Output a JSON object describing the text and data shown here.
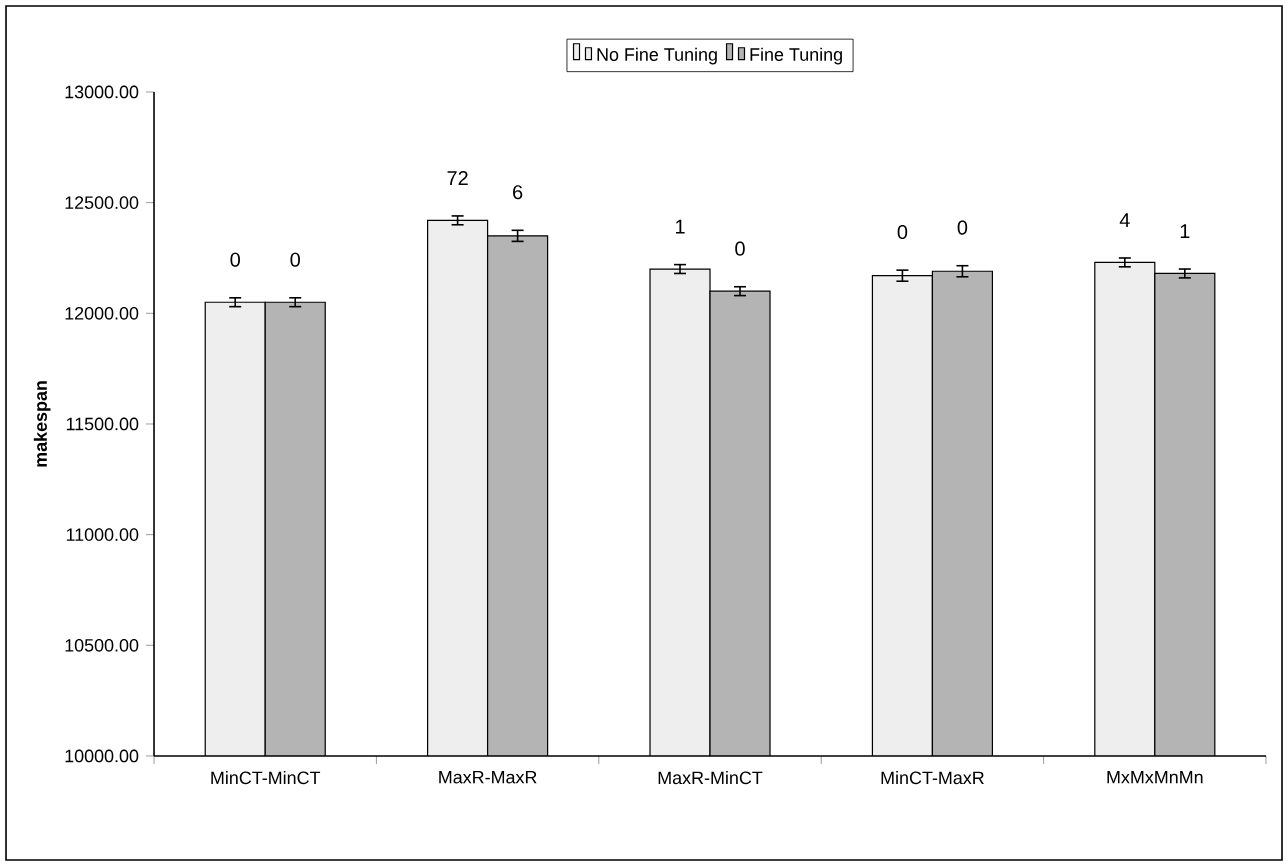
{
  "chart_data": {
    "type": "bar",
    "ylabel": "makespan",
    "categories": [
      "MinCT-MinCT",
      "MaxR-MaxR",
      "MaxR-MinCT",
      "MinCT-MaxR",
      "MxMxMnMn"
    ],
    "series": [
      {
        "name": "No Fine Tuning",
        "color": "#eeeeee",
        "values": [
          12050,
          12420,
          12200,
          12170,
          12230
        ],
        "errors": [
          20,
          20,
          20,
          25,
          20
        ]
      },
      {
        "name": "Fine Tuning",
        "color": "#b4b4b4",
        "values": [
          12050,
          12350,
          12100,
          12190,
          12180
        ],
        "errors": [
          20,
          25,
          20,
          25,
          20
        ]
      }
    ],
    "annotations": [
      "0",
      "0",
      "72",
      "6",
      "1",
      "0",
      "0",
      "0",
      "4",
      "1"
    ],
    "ylim": [
      10000,
      13000
    ],
    "yticks": [
      {
        "value": 10000,
        "label": "10000.00"
      },
      {
        "value": 10500,
        "label": "10500.00"
      },
      {
        "value": 11000,
        "label": "11000.00"
      },
      {
        "value": 11500,
        "label": "11500.00"
      },
      {
        "value": 12000,
        "label": "12000.00"
      },
      {
        "value": 12500,
        "label": "12500.00"
      },
      {
        "value": 13000,
        "label": "13000.00"
      }
    ],
    "legend": "top",
    "grid": false
  }
}
